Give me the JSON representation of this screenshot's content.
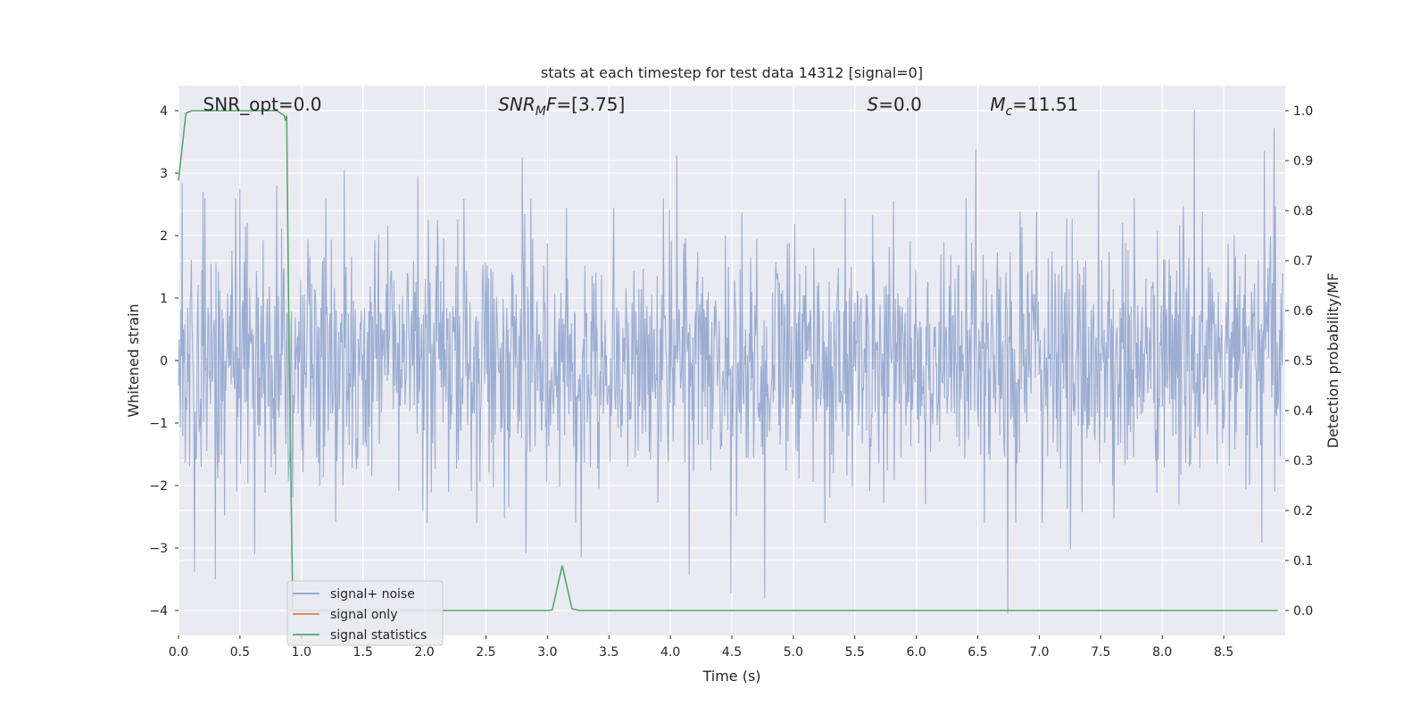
{
  "chart_data": {
    "type": "line",
    "title": "stats at each timestep for test data 14312 [signal=0]",
    "xlabel": "Time (s)",
    "ylabel_left": "Whitened strain",
    "ylabel_right": "Detection probability/MF",
    "xlim": [
      0.0,
      9.0
    ],
    "ylim_left": [
      -4.4,
      4.4
    ],
    "ylim_right": [
      -0.05,
      1.05
    ],
    "x_ticks": [
      0.0,
      0.5,
      1.0,
      1.5,
      2.0,
      2.5,
      3.0,
      3.5,
      4.0,
      4.5,
      5.0,
      5.5,
      6.0,
      6.5,
      7.0,
      7.5,
      8.0,
      8.5
    ],
    "x_tick_labels": [
      "0.0",
      "0.5",
      "1.0",
      "1.5",
      "2.0",
      "2.5",
      "3.0",
      "3.5",
      "4.0",
      "4.5",
      "5.0",
      "5.5",
      "6.0",
      "6.5",
      "7.0",
      "7.5",
      "8.0",
      "8.5"
    ],
    "y_ticks_left": [
      4,
      3,
      2,
      1,
      0,
      -1,
      -2,
      -3,
      -4
    ],
    "y_tick_labels_left": [
      "4",
      "3",
      "2",
      "1",
      "0",
      "−1",
      "−2",
      "−3",
      "−4"
    ],
    "y_ticks_right": [
      1.0,
      0.9,
      0.8,
      0.7,
      0.6,
      0.5,
      0.4,
      0.3,
      0.2,
      0.1,
      0.0
    ],
    "y_tick_labels_right": [
      "1.0",
      "0.9",
      "0.8",
      "0.7",
      "0.6",
      "0.5",
      "0.4",
      "0.3",
      "0.2",
      "0.1",
      "0.0"
    ],
    "grid": true,
    "legend_position": "bottom-left",
    "annotations": [
      {
        "prefix": "SNR_opt",
        "italic_sub": "",
        "suffix": "=0.0",
        "x": 0.2
      },
      {
        "prefix": "SNR",
        "italic_sub": "M",
        "suffix_italic": "F",
        "suffix": "=[3.75]",
        "x": 2.6
      },
      {
        "prefix": "S",
        "italic_sub": "",
        "suffix": "=0.0",
        "x": 5.6,
        "italic_prefix": true
      },
      {
        "prefix": "M",
        "italic_sub": "c",
        "suffix": "=11.51",
        "x": 6.6,
        "italic_prefix": true
      }
    ],
    "series": [
      {
        "name": "signal+ noise",
        "axis": "left",
        "color": "#8da2cc",
        "style": "noise",
        "noise_sigma": 1.0,
        "samples": 1800,
        "peaks": [
          {
            "x": 0.03,
            "y": 2.85
          },
          {
            "x": 0.2,
            "y": 2.7
          },
          {
            "x": 0.5,
            "y": 2.75
          },
          {
            "x": 0.8,
            "y": 2.8
          },
          {
            "x": 1.35,
            "y": 3.05
          },
          {
            "x": 1.95,
            "y": 2.95
          },
          {
            "x": 2.8,
            "y": 3.25
          },
          {
            "x": 4.06,
            "y": 3.28
          },
          {
            "x": 6.5,
            "y": 3.38
          },
          {
            "x": 7.5,
            "y": 3.05
          },
          {
            "x": 8.28,
            "y": 4.02
          },
          {
            "x": 8.85,
            "y": 3.35
          },
          {
            "x": 8.93,
            "y": 3.72
          },
          {
            "x": 0.13,
            "y": -3.38
          },
          {
            "x": 0.3,
            "y": -3.5
          },
          {
            "x": 0.62,
            "y": -3.1
          },
          {
            "x": 2.83,
            "y": -3.08
          },
          {
            "x": 3.28,
            "y": -3.15
          },
          {
            "x": 4.16,
            "y": -3.42
          },
          {
            "x": 4.5,
            "y": -3.72
          },
          {
            "x": 4.78,
            "y": -3.8
          },
          {
            "x": 6.76,
            "y": -4.05
          },
          {
            "x": 7.27,
            "y": -3.02
          },
          {
            "x": 8.83,
            "y": -2.92
          }
        ]
      },
      {
        "name": "signal only",
        "axis": "left",
        "color": "#dd8452",
        "x": [
          0.9,
          0.96
        ],
        "y": [
          -4.0,
          -4.0
        ]
      },
      {
        "name": "signal statistics",
        "axis": "right",
        "color": "#55a868",
        "x": [
          0.0,
          0.06,
          0.11,
          0.2,
          0.4,
          0.6,
          0.8,
          0.86,
          0.87,
          0.88,
          0.9,
          0.93,
          0.96,
          1.0,
          2.0,
          3.0,
          3.04,
          3.12,
          3.2,
          3.26,
          4.0,
          5.0,
          6.0,
          7.0,
          8.0,
          8.94
        ],
        "y": [
          0.86,
          0.995,
          1.0,
          1.0,
          1.0,
          1.0,
          1.0,
          0.99,
          0.98,
          0.99,
          0.5,
          0.0,
          0.0,
          0.0,
          0.0,
          0.0,
          0.001,
          0.09,
          0.003,
          0.0,
          0.0,
          0.0,
          0.0,
          0.0,
          0.0,
          0.0
        ]
      }
    ]
  }
}
